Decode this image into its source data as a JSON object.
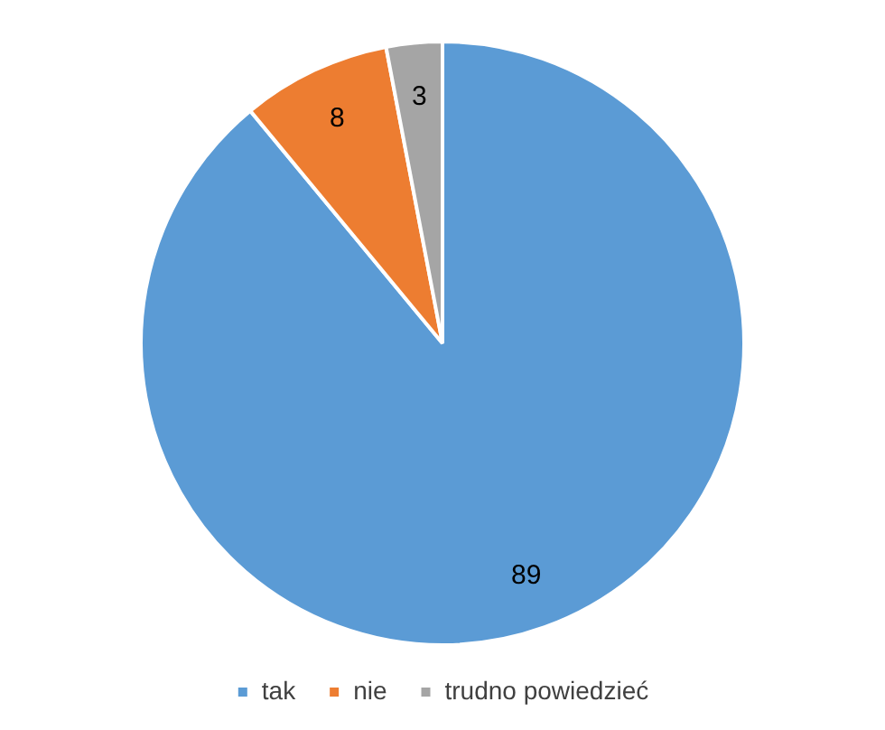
{
  "chart_data": {
    "type": "pie",
    "categories": [
      "tak",
      "nie",
      "trudno powiedzieć"
    ],
    "values": [
      89,
      8,
      3
    ],
    "colors": [
      "#5b9bd5",
      "#ed7d31",
      "#a5a5a5"
    ],
    "data_labels": true,
    "legend": "bottom"
  }
}
